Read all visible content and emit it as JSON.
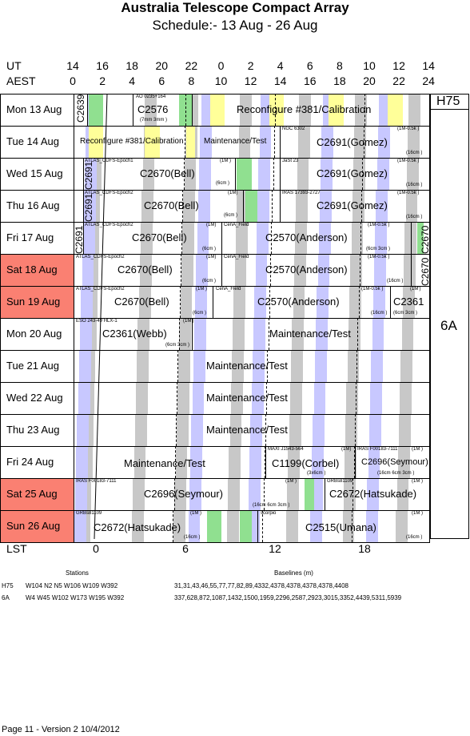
{
  "title": "Australia Telescope Compact Array",
  "subtitle": "Schedule:- 13 Aug - 26 Aug",
  "axis": {
    "ut_label": "UT",
    "aest_label": "AEST",
    "ut_hours": [
      "14",
      "16",
      "18",
      "20",
      "22",
      "0",
      "2",
      "4",
      "6",
      "8",
      "10",
      "12",
      "14"
    ],
    "aest_hours": [
      "0",
      "2",
      "4",
      "6",
      "8",
      "10",
      "12",
      "14",
      "16",
      "18",
      "20",
      "22",
      "24"
    ],
    "lst_label": "LST",
    "lst_hours": [
      "0",
      "6",
      "12",
      "18"
    ]
  },
  "configs": {
    "h75": "H75",
    "sixa": "6A"
  },
  "days": [
    {
      "label": "Mon  13 Aug",
      "weekend": false
    },
    {
      "label": "Tue  14 Aug",
      "weekend": false
    },
    {
      "label": "Wed  15 Aug",
      "weekend": false
    },
    {
      "label": "Thu  16 Aug",
      "weekend": false
    },
    {
      "label": "Fri   17 Aug",
      "weekend": false
    },
    {
      "label": "Sat  18 Aug",
      "weekend": true
    },
    {
      "label": "Sun  19 Aug",
      "weekend": true
    },
    {
      "label": "Mon  20 Aug",
      "weekend": false
    },
    {
      "label": "Tue  21 Aug",
      "weekend": false
    },
    {
      "label": "Wed  22 Aug",
      "weekend": false
    },
    {
      "label": "Thu  23 Aug",
      "weekend": false
    },
    {
      "label": "Fri   24 Aug",
      "weekend": false
    },
    {
      "label": "Sat  25 Aug",
      "weekend": true
    },
    {
      "label": "Sun  26 Aug",
      "weekend": true
    }
  ],
  "projects": {
    "r0": {
      "a": "C2639",
      "b": "AO 0235+164",
      "c": "C2576",
      "d": "(7mm 3mm )",
      "e": "Reconfigure #381/Calibration"
    },
    "r1": {
      "a": "Reconfigure #381/Calibration",
      "b": "Maintenance/Test",
      "c": "NGC 6302",
      "d": "C2691(Gomez)",
      "e": "(1M-0.5k )",
      "f": "(16cm )"
    },
    "r2": {
      "a": "C2691",
      "b": "ATLAS_CDFS-Epoch1",
      "c": "C2670(Bell)",
      "d": "(1M )",
      "e": "(6cm )",
      "f": "JaSt 23",
      "g": "C2691(Gomez)",
      "h": "(1M-0.5k )",
      "i": "(16cm )"
    },
    "r3": {
      "a": "C2691",
      "b": "ATLAS_CDFS-Epoch2",
      "c": "C2670(Bell)",
      "d": "(1M)",
      "e": "(6cm )",
      "f": "IRAS 17393-2727",
      "g": "C2691(Gomez)",
      "h": "(1M-0.5k )",
      "i": "(16cm )"
    },
    "r4": {
      "a": "C2691",
      "b": "ATLAS_CDFS-Epoch2",
      "c": "C2670(Bell)",
      "d": "(1M)",
      "e": "(6cm )",
      "f": "CenA_Field",
      "g": "C2570(Anderson)",
      "h": "(1M-0.5k )",
      "i": "(6cm 3cm )",
      "j": "C2670"
    },
    "r5": {
      "a": "ATLAS_CDFS-Epoch2",
      "b": "C2670(Bell)",
      "c": "(1M)",
      "d": "(6cm )",
      "e": "CenA_Field",
      "f": "C2570(Anderson)",
      "g": "(1M-0.5k )",
      "h": "(16cm )",
      "i": "C2670"
    },
    "r6": {
      "a": "ATLAS_CDFS-Epoch2",
      "b": "C2670(Bell)",
      "c": "(1M )",
      "d": "(6cm )",
      "e": "CenA_Field",
      "f": "C2570(Anderson)",
      "g": "(1M-0.5k )",
      "h": "(16cm )",
      "i": "(1M')",
      "j": "C2361",
      "k": "(6cm 3cm )"
    },
    "r7": {
      "a": "ESO 243-49 HLX-1",
      "b": "(1M')",
      "c": "C2361(Webb)",
      "d": "(6cm 3cm )",
      "e": "Maintenance/Test"
    },
    "r8": {
      "a": "Maintenance/Test"
    },
    "r9": {
      "a": "Maintenance/Test"
    },
    "r10": {
      "a": "Maintenance/Test"
    },
    "r11": {
      "a": "Maintenance/Test",
      "b": "MAXI J1543-564",
      "c": "(1M)",
      "d": "C1199(Corbel)",
      "e": "(3x6cm )",
      "f": "IRAS F00183-7111",
      "g": "(1M )",
      "h": "C2696(Seymour)",
      "i": "(16cm 6cm 3cm )"
    },
    "r12": {
      "a": "IRAS F00183-7111",
      "b": "C2696(Seymour)",
      "c": "(1M )",
      "d": "(16cm 6cm 3cm )",
      "e": "GRBs81109",
      "f": "C2672(Hatsukade)",
      "g": "(1M )"
    },
    "r13": {
      "a": "GRBs81109",
      "b": "(1M )",
      "c": "C2672(Hatsukade)",
      "d": "(16cm )",
      "e": "scorpio",
      "f": "C2515(Umana)",
      "g": "(1M )",
      "h": "(16cm )"
    }
  },
  "footer": {
    "stations_header": "Stations",
    "baselines_header": "Baselines (m)",
    "h75_label": "H75",
    "h75_stations": "W104 N2 N5 W106 W109 W392",
    "h75_baselines": "31,31,43,46,55,77,77,82,89,4332,4378,4378,4378,4378,4408",
    "sixa_label": "6A",
    "sixa_stations": "W4 W45 W102 W173 W195 W392",
    "sixa_baselines": "337,628,872,1087,1432,1500,1959,2296,2587,2923,3015,3352,4439,5311,5939",
    "page": "Page 11 - Version 2  10/4/2012"
  }
}
